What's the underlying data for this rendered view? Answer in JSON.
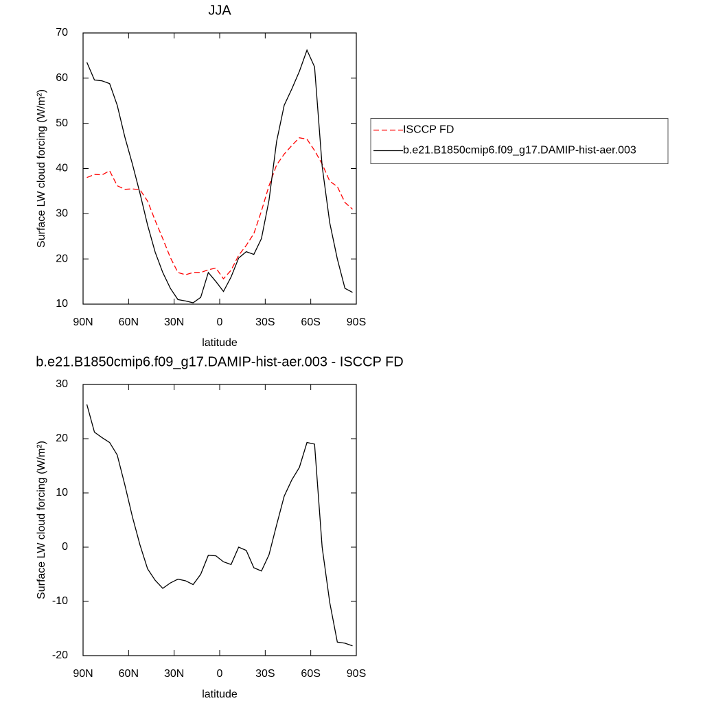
{
  "chart_data": [
    {
      "type": "line",
      "title": "JJA",
      "x": [
        87.5,
        82.5,
        77.5,
        72.5,
        67.5,
        62.5,
        57.5,
        52.5,
        47.5,
        42.5,
        37.5,
        32.5,
        27.5,
        22.5,
        17.5,
        12.5,
        7.5,
        2.5,
        -2.5,
        -7.5,
        -12.5,
        -17.5,
        -22.5,
        -27.5,
        -32.5,
        -37.5,
        -42.5,
        -47.5,
        -52.5,
        -57.5,
        -62.5,
        -67.5,
        -72.5,
        -77.5,
        -82.5,
        -87.5
      ],
      "series": [
        {
          "name": "ISCCP FD",
          "color": "#ff0000",
          "linestyle": "dashed",
          "values": [
            38.0,
            38.7,
            38.6,
            39.5,
            36.2,
            35.4,
            35.5,
            35.3,
            32.8,
            28.5,
            24.5,
            20.3,
            17.0,
            16.5,
            17.0,
            17.0,
            17.6,
            18.0,
            15.6,
            17.5,
            20.8,
            23.0,
            25.6,
            30.6,
            36.2,
            40.8,
            43.2,
            45.1,
            46.8,
            46.5,
            44.0,
            41.0,
            37.2,
            36.0,
            32.5,
            31.0
          ]
        },
        {
          "name": "b.e21.B1850cmip6.f09_g17.DAMIP-hist-aer.003",
          "color": "#000000",
          "linestyle": "solid",
          "values": [
            63.5,
            59.6,
            59.4,
            58.8,
            54.0,
            47.0,
            41.0,
            34.5,
            27.5,
            21.5,
            17.0,
            13.5,
            11.0,
            10.7,
            10.3,
            11.5,
            17.0,
            15.0,
            12.8,
            16.0,
            20.2,
            21.6,
            21.0,
            24.5,
            33.0,
            46.0,
            54.0,
            57.6,
            61.5,
            66.2,
            62.5,
            40.5,
            28.0,
            20.0,
            13.5,
            12.6
          ]
        }
      ],
      "xlim": [
        90,
        -90
      ],
      "xticks": [
        {
          "value": 90,
          "label": "90N"
        },
        {
          "value": 60,
          "label": "60N"
        },
        {
          "value": 30,
          "label": "30N"
        },
        0,
        {
          "value": -30,
          "label": "30S"
        },
        {
          "value": -60,
          "label": "60S"
        },
        {
          "value": -90,
          "label": "90S"
        }
      ],
      "ylim": [
        10,
        70
      ],
      "yticks": [
        10,
        20,
        30,
        40,
        50,
        60,
        70
      ],
      "xlabel": "latitude",
      "ylabel": "Surface LW cloud forcing (W/m²)",
      "legend": "right"
    },
    {
      "type": "line",
      "title": "b.e21.B1850cmip6.f09_g17.DAMIP-hist-aer.003 - ISCCP FD",
      "x": [
        87.5,
        82.5,
        77.5,
        72.5,
        67.5,
        62.5,
        57.5,
        52.5,
        47.5,
        42.5,
        37.5,
        32.5,
        27.5,
        22.5,
        17.5,
        12.5,
        7.5,
        2.5,
        -2.5,
        -7.5,
        -12.5,
        -17.5,
        -22.5,
        -27.5,
        -32.5,
        -37.5,
        -42.5,
        -47.5,
        -52.5,
        -57.5,
        -62.5,
        -67.5,
        -72.5,
        -77.5,
        -82.5,
        -87.5
      ],
      "series": [
        {
          "color": "#000000",
          "linestyle": "solid",
          "values": [
            26.3,
            21.2,
            20.2,
            19.3,
            17.0,
            11.5,
            5.6,
            0.4,
            -4.0,
            -6.1,
            -7.6,
            -6.6,
            -5.9,
            -6.2,
            -6.9,
            -5.0,
            -1.5,
            -1.6,
            -2.7,
            -3.2,
            0.0,
            -0.6,
            -3.8,
            -4.4,
            -1.4,
            4.1,
            9.4,
            12.4,
            14.7,
            19.3,
            19.0,
            0.0,
            -10.2,
            -17.5,
            -17.7,
            -18.2
          ]
        }
      ],
      "xlim": [
        90,
        -90
      ],
      "xticks": [
        {
          "value": 90,
          "label": "90N"
        },
        {
          "value": 60,
          "label": "60N"
        },
        {
          "value": 30,
          "label": "30N"
        },
        0,
        {
          "value": -30,
          "label": "30S"
        },
        {
          "value": -60,
          "label": "60S"
        },
        {
          "value": -90,
          "label": "90S"
        }
      ],
      "ylim": [
        -20,
        30
      ],
      "yticks": [
        -20,
        -10,
        0,
        10,
        20,
        30
      ],
      "xlabel": "latitude",
      "ylabel": "Surface LW cloud forcing (W/m²)"
    }
  ]
}
